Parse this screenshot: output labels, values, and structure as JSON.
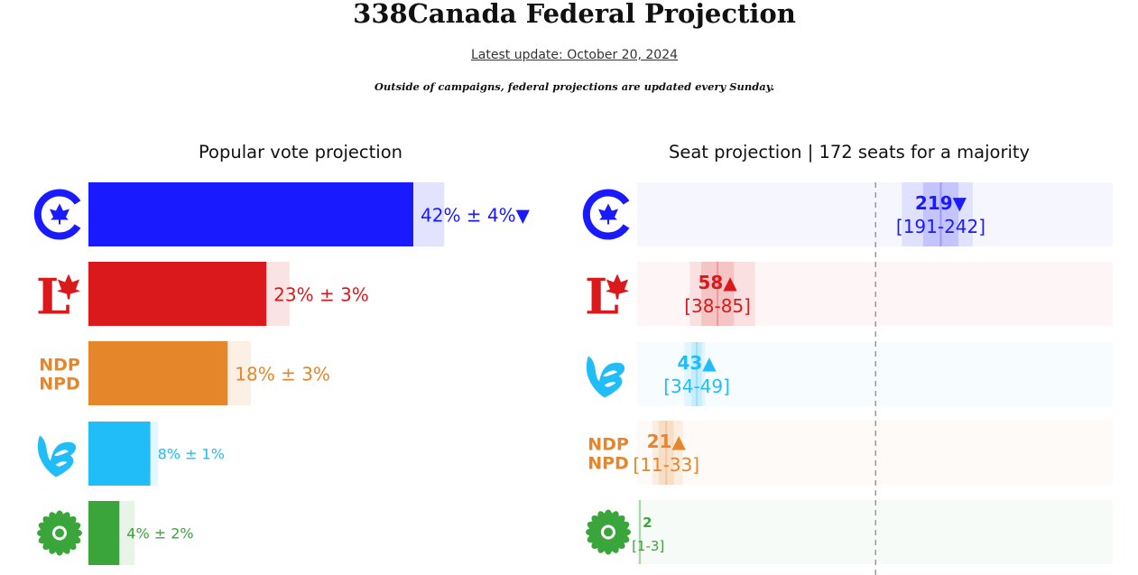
{
  "header": {
    "title": "338Canada Federal Projection",
    "update": "Latest update: October 20, 2024",
    "note": "Outside of campaigns, federal projections are updated every Sunday."
  },
  "vote_section": {
    "title": "Popular vote projection"
  },
  "seat_section": {
    "title": "Seat projection | 172 seats for a majority"
  },
  "parties": {
    "cpc": {
      "logo": "conservative-logo",
      "color": "#1a1aff"
    },
    "lpc": {
      "logo": "liberal-logo",
      "color": "#d9191c",
      "logo_text": "L"
    },
    "ndp": {
      "logo": "ndp-logo",
      "color": "#e5862a",
      "logo_text": [
        "NDP",
        "NPD"
      ]
    },
    "bq": {
      "logo": "bloc-logo",
      "color": "#20bdf8"
    },
    "gpc": {
      "logo": "green-logo",
      "color": "#3aa53a"
    }
  },
  "chart_data": [
    {
      "type": "bar",
      "title": "Popular vote projection",
      "categories": [
        "cpc",
        "lpc",
        "ndp",
        "bq",
        "gpc"
      ],
      "values": [
        42,
        23,
        18,
        8,
        4
      ],
      "margins": [
        4,
        3,
        3,
        1,
        2
      ],
      "labels": [
        "42% ± 4%",
        "23% ± 3%",
        "18% ± 3%",
        "8% ± 1%",
        "4% ± 2%"
      ],
      "trend": [
        "down",
        "",
        "",
        "",
        ""
      ],
      "trend_glyph": {
        "down": "▼",
        "up": "▲"
      },
      "xlim": [
        0,
        58
      ]
    },
    {
      "type": "bar",
      "title": "Seat projection | 172 seats for a majority",
      "categories": [
        "cpc",
        "lpc",
        "bq",
        "ndp",
        "gpc"
      ],
      "values": [
        219,
        58,
        43,
        21,
        2
      ],
      "ranges": [
        [
          191,
          242
        ],
        [
          38,
          85
        ],
        [
          34,
          49
        ],
        [
          11,
          33
        ],
        [
          1,
          3
        ]
      ],
      "value_labels": [
        "219",
        "58",
        "43",
        "21",
        "2"
      ],
      "range_labels": [
        "[191-242]",
        "[38-85]",
        "[34-49]",
        "[11-33]",
        "[1-3]"
      ],
      "trend": [
        "down",
        "up",
        "up",
        "up",
        ""
      ],
      "trend_glyph": {
        "down": "▼",
        "up": "▲"
      },
      "majority": 172,
      "xlim": [
        0,
        343
      ]
    }
  ]
}
